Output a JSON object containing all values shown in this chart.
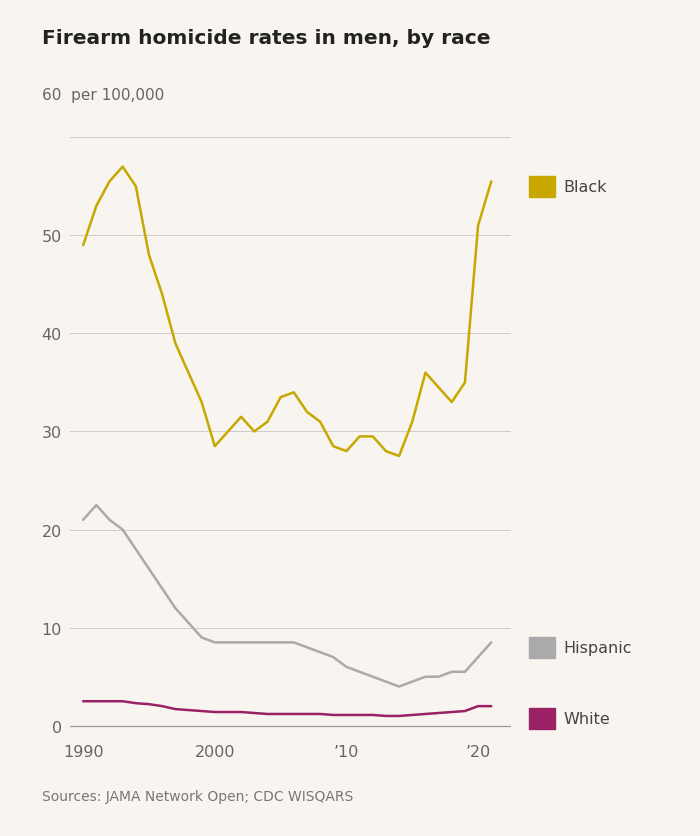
{
  "title": "Firearm homicide rates in men, by race",
  "source": "Sources: JAMA Network Open; CDC WISQARS",
  "background_color": "#f8f5f0",
  "years_black": [
    1990,
    1991,
    1992,
    1993,
    1994,
    1995,
    1996,
    1997,
    1998,
    1999,
    2000,
    2001,
    2002,
    2003,
    2004,
    2005,
    2006,
    2007,
    2008,
    2009,
    2010,
    2011,
    2012,
    2013,
    2014,
    2015,
    2016,
    2017,
    2018,
    2019,
    2020,
    2021
  ],
  "values_black": [
    49,
    53,
    55.5,
    57,
    55,
    48,
    44,
    39,
    36,
    33,
    28.5,
    30,
    31.5,
    30,
    31,
    33.5,
    34,
    32,
    31,
    28.5,
    28,
    29.5,
    29.5,
    28,
    27.5,
    31,
    36,
    34.5,
    33,
    35,
    51,
    55.5
  ],
  "years_hispanic": [
    1990,
    1991,
    1992,
    1993,
    1994,
    1995,
    1996,
    1997,
    1998,
    1999,
    2000,
    2001,
    2002,
    2003,
    2004,
    2005,
    2006,
    2007,
    2008,
    2009,
    2010,
    2011,
    2012,
    2013,
    2014,
    2015,
    2016,
    2017,
    2018,
    2019,
    2020,
    2021
  ],
  "values_hispanic": [
    21,
    22.5,
    21,
    20,
    18,
    16,
    14,
    12,
    10.5,
    9,
    8.5,
    8.5,
    8.5,
    8.5,
    8.5,
    8.5,
    8.5,
    8,
    7.5,
    7,
    6,
    5.5,
    5,
    4.5,
    4,
    4.5,
    5,
    5,
    5.5,
    5.5,
    7,
    8.5
  ],
  "years_white": [
    1990,
    1991,
    1992,
    1993,
    1994,
    1995,
    1996,
    1997,
    1998,
    1999,
    2000,
    2001,
    2002,
    2003,
    2004,
    2005,
    2006,
    2007,
    2008,
    2009,
    2010,
    2011,
    2012,
    2013,
    2014,
    2015,
    2016,
    2017,
    2018,
    2019,
    2020,
    2021
  ],
  "values_white": [
    2.5,
    2.5,
    2.5,
    2.5,
    2.3,
    2.2,
    2.0,
    1.7,
    1.6,
    1.5,
    1.4,
    1.4,
    1.4,
    1.3,
    1.2,
    1.2,
    1.2,
    1.2,
    1.2,
    1.1,
    1.1,
    1.1,
    1.1,
    1.0,
    1.0,
    1.1,
    1.2,
    1.3,
    1.4,
    1.5,
    2.0,
    2.0
  ],
  "color_black": "#c8a800",
  "color_hispanic": "#aaaaaa",
  "color_white": "#9b2167",
  "yticks": [
    0,
    10,
    20,
    30,
    40,
    50,
    60
  ],
  "xtick_values": [
    1990,
    2000,
    2010,
    2020
  ],
  "xtick_labels": [
    "1990",
    "2000",
    "’10",
    "’20"
  ],
  "xlim": [
    1989.0,
    2022.5
  ],
  "ylim": [
    -1,
    63
  ],
  "linewidth": 1.8,
  "legend_black_label": "Black",
  "legend_hispanic_label": "Hispanic",
  "legend_white_label": "White",
  "ylabel_text": "60  per 100,000",
  "text_color": "#444444",
  "tick_color": "#666666",
  "grid_color": "#cccccc"
}
